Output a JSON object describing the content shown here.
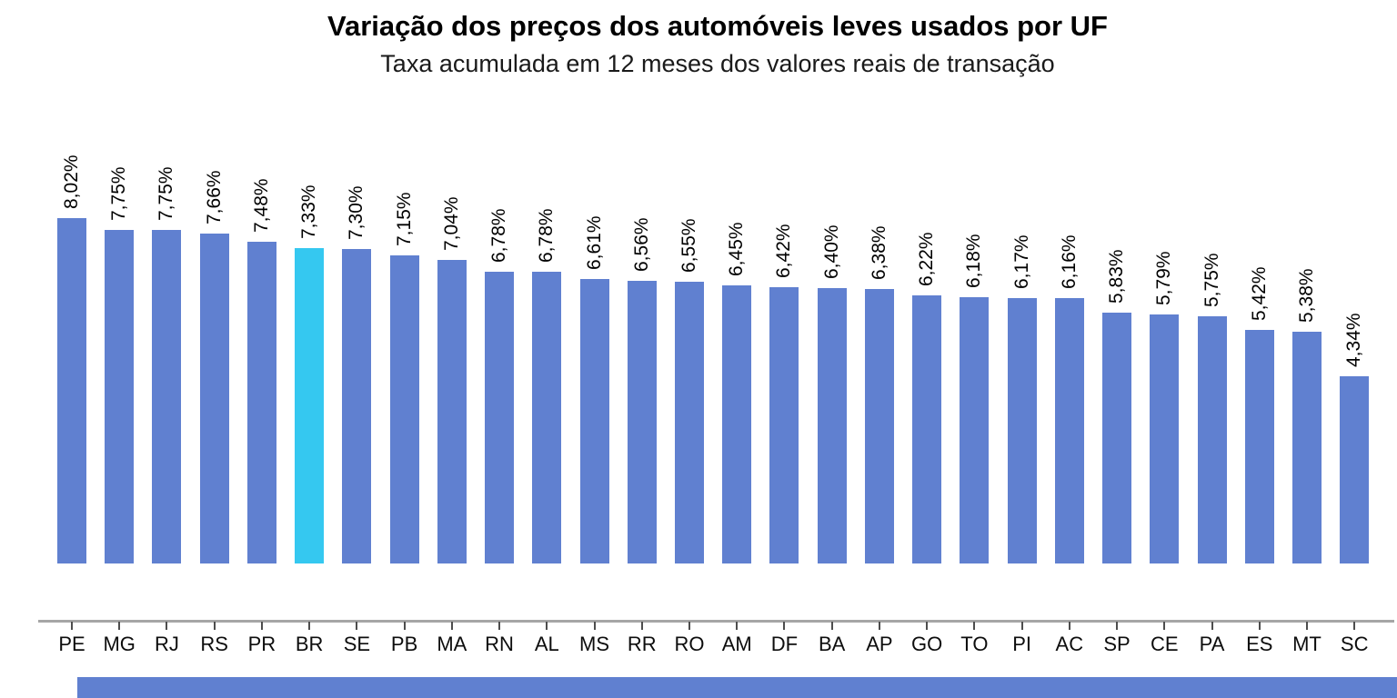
{
  "title": "Variação dos preços dos automóveis leves usados por UF",
  "subtitle": "Taxa acumulada em 12 meses dos valores reais de transação",
  "chart_data": {
    "type": "bar",
    "title": "Variação dos preços dos automóveis leves usados por UF",
    "subtitle": "Taxa acumulada em 12 meses dos valores reais de transação",
    "categories": [
      "PE",
      "MG",
      "RJ",
      "RS",
      "PR",
      "BR",
      "SE",
      "PB",
      "MA",
      "RN",
      "AL",
      "MS",
      "RR",
      "RO",
      "AM",
      "DF",
      "BA",
      "AP",
      "GO",
      "TO",
      "PI",
      "AC",
      "SP",
      "CE",
      "PA",
      "ES",
      "MT",
      "SC"
    ],
    "values": [
      8.02,
      7.75,
      7.75,
      7.66,
      7.48,
      7.33,
      7.3,
      7.15,
      7.04,
      6.78,
      6.78,
      6.61,
      6.56,
      6.55,
      6.45,
      6.42,
      6.4,
      6.38,
      6.22,
      6.18,
      6.17,
      6.16,
      5.83,
      5.79,
      5.75,
      5.42,
      5.38,
      4.34
    ],
    "value_labels": [
      "8,02%",
      "7,75%",
      "7,75%",
      "7,66%",
      "7,48%",
      "7,33%",
      "7,30%",
      "7,15%",
      "7,04%",
      "6,78%",
      "6,78%",
      "6,61%",
      "6,56%",
      "6,55%",
      "6,45%",
      "6,42%",
      "6,40%",
      "6,38%",
      "6,22%",
      "6,18%",
      "6,17%",
      "6,16%",
      "5,83%",
      "5,79%",
      "5,75%",
      "5,42%",
      "5,38%",
      "4,34%"
    ],
    "highlight_category": "BR",
    "bar_color": "#6080d0",
    "highlight_color": "#35c8f0",
    "value_label_rotation": 90,
    "xlabel": "",
    "ylabel": "",
    "ylim": [
      0,
      8.8
    ],
    "grid": false,
    "legend": "none"
  },
  "axis": {
    "line_color": "#a6a6a6",
    "tick_color": "#4d4d4d",
    "label_color": "#0d0d0d"
  },
  "accents": {
    "bottom_bar_color": "#6080d0"
  }
}
